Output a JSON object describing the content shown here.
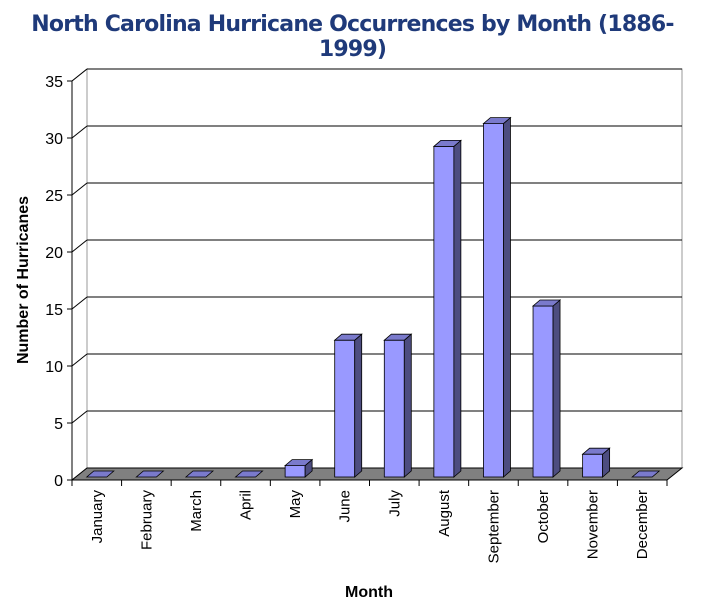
{
  "chart_data": {
    "type": "bar",
    "title": "North Carolina Hurricane Occurrences by Month (1886-1999)",
    "xlabel": "Month",
    "ylabel": "Number of Hurricanes",
    "categories": [
      "January",
      "February",
      "March",
      "April",
      "May",
      "June",
      "July",
      "August",
      "September",
      "October",
      "November",
      "December"
    ],
    "values": [
      0,
      0,
      0,
      0,
      1,
      12,
      12,
      29,
      31,
      15,
      2,
      0
    ],
    "ylim": [
      0,
      35
    ],
    "yticks": [
      "0",
      "5",
      "10",
      "15",
      "20",
      "25",
      "30",
      "35"
    ],
    "grid": true,
    "style": "3d",
    "colors": {
      "bar_front": "#9999ff",
      "bar_side": "#4d4d80",
      "bar_top": "#7a7acc",
      "floor": "#808080",
      "title": "#1f3a7a"
    }
  }
}
